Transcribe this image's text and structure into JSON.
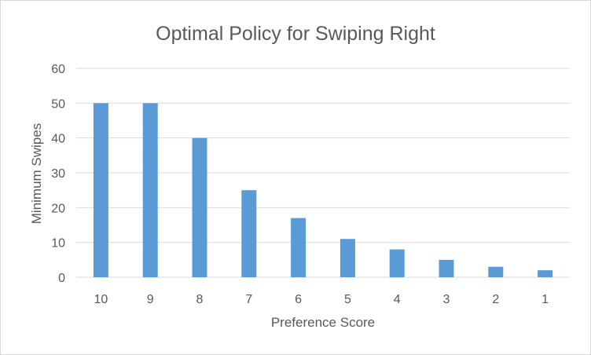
{
  "chart_data": {
    "type": "bar",
    "title": "Optimal Policy for Swiping Right",
    "xlabel": "Preference Score",
    "ylabel": "Minimum Swipes",
    "categories": [
      "10",
      "9",
      "8",
      "7",
      "6",
      "5",
      "4",
      "3",
      "2",
      "1"
    ],
    "values": [
      50,
      50,
      40,
      25,
      17,
      11,
      8,
      5,
      3,
      2
    ],
    "ylim": [
      0,
      60
    ],
    "yticks": [
      "0",
      "10",
      "20",
      "30",
      "40",
      "50",
      "60"
    ],
    "grid": true,
    "legend": "none",
    "bar_color": "#5b9bd5"
  }
}
